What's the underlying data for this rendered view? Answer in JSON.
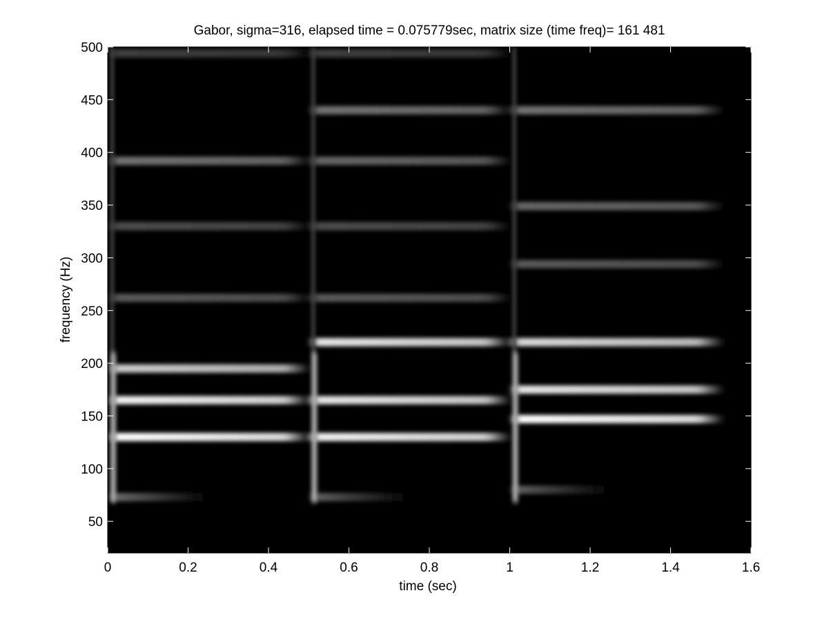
{
  "chart_data": {
    "type": "heatmap",
    "title": "Gabor, sigma=316, elapsed time = 0.075779sec, matrix size (time freq)= 161  481",
    "xlabel": "time (sec)",
    "ylabel": "frequency (Hz)",
    "xlim": [
      0,
      1.6
    ],
    "ylim": [
      20,
      500
    ],
    "xticks": [
      0,
      0.2,
      0.4,
      0.6,
      0.8,
      1,
      1.2,
      1.4,
      1.6
    ],
    "xtick_labels": [
      "0",
      "0.2",
      "0.4",
      "0.6",
      "0.8",
      "1",
      "1.2",
      "1.4",
      "1.6"
    ],
    "yticks": [
      50,
      100,
      150,
      200,
      250,
      300,
      350,
      400,
      450,
      500
    ],
    "ytick_labels": [
      "50",
      "100",
      "150",
      "200",
      "250",
      "300",
      "350",
      "400",
      "450",
      "500"
    ],
    "colormap": "gray",
    "background_color": "#000000",
    "grid": false,
    "matrix_size": {
      "time": 161,
      "freq": 481
    },
    "segments": [
      {
        "t_start": 0.0,
        "t_end": 0.5,
        "bands": [
          {
            "freq": 73,
            "intensity": 0.45,
            "fade_end": 0.25
          },
          {
            "freq": 130,
            "intensity": 1.0
          },
          {
            "freq": 165,
            "intensity": 0.95
          },
          {
            "freq": 195,
            "intensity": 0.8
          },
          {
            "freq": 262,
            "intensity": 0.35
          },
          {
            "freq": 330,
            "intensity": 0.3
          },
          {
            "freq": 392,
            "intensity": 0.45
          },
          {
            "freq": 494,
            "intensity": 0.25
          }
        ]
      },
      {
        "t_start": 0.5,
        "t_end": 1.0,
        "bands": [
          {
            "freq": 73,
            "intensity": 0.4,
            "fade_end": 0.75
          },
          {
            "freq": 130,
            "intensity": 0.95
          },
          {
            "freq": 165,
            "intensity": 0.9
          },
          {
            "freq": 220,
            "intensity": 0.9
          },
          {
            "freq": 262,
            "intensity": 0.35
          },
          {
            "freq": 330,
            "intensity": 0.3
          },
          {
            "freq": 392,
            "intensity": 0.4
          },
          {
            "freq": 440,
            "intensity": 0.45
          },
          {
            "freq": 494,
            "intensity": 0.25
          }
        ]
      },
      {
        "t_start": 1.0,
        "t_end": 1.53,
        "bands": [
          {
            "freq": 80,
            "intensity": 0.4,
            "fade_end": 1.25
          },
          {
            "freq": 147,
            "intensity": 1.0
          },
          {
            "freq": 175,
            "intensity": 0.9
          },
          {
            "freq": 220,
            "intensity": 0.85
          },
          {
            "freq": 294,
            "intensity": 0.35
          },
          {
            "freq": 349,
            "intensity": 0.4
          },
          {
            "freq": 440,
            "intensity": 0.45
          }
        ]
      }
    ]
  }
}
